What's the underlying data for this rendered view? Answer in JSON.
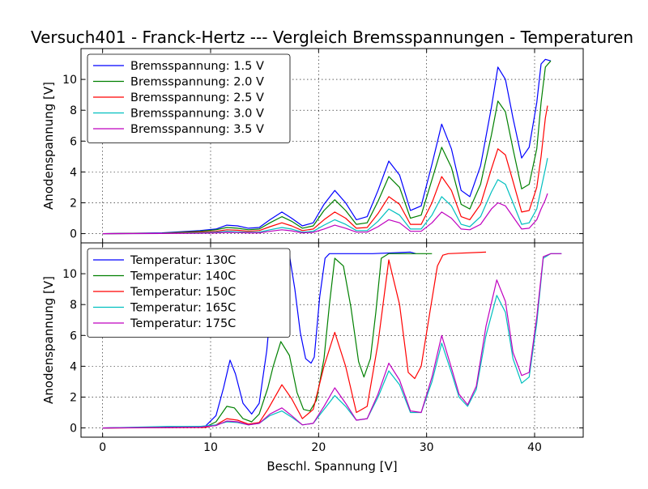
{
  "title": "Versuch401 - Franck-Hertz --- Vergleich Bremsspannungen - Temperaturen",
  "xlabel": "Beschl. Spannung [V]",
  "chart_data": [
    {
      "type": "line",
      "ylabel": "Anodenspannung [V]",
      "xlim": [
        -2,
        44.5
      ],
      "ylim": [
        -0.6,
        12.0
      ],
      "xticks": [
        0,
        10,
        20,
        30,
        40
      ],
      "yticks": [
        0,
        2,
        4,
        6,
        8,
        10
      ],
      "tick_labels_x": [
        "0",
        "10",
        "20",
        "30",
        "40"
      ],
      "tick_labels_y": [
        "0",
        "2",
        "4",
        "6",
        "8",
        "10"
      ],
      "grid": true,
      "legend_position": "top-left",
      "series": [
        {
          "name": "Bremsspannung: 1.5 V",
          "color": "#0000ff",
          "x": [
            0,
            5.5,
            9,
            10.5,
            11.5,
            12.5,
            13.5,
            14.5,
            15.5,
            16.6,
            17.5,
            18.5,
            19.5,
            20.5,
            21.5,
            22.5,
            23.5,
            24.5,
            25.5,
            26.5,
            27.5,
            28.5,
            29.5,
            30.5,
            31.4,
            32.3,
            33.2,
            34,
            35,
            36,
            36.6,
            37.3,
            38,
            38.8,
            39.5,
            40.2,
            40.6,
            41,
            41.5
          ],
          "y": [
            0,
            0.05,
            0.2,
            0.3,
            0.55,
            0.5,
            0.35,
            0.4,
            0.9,
            1.4,
            1.0,
            0.5,
            0.7,
            1.9,
            2.8,
            2.0,
            0.9,
            1.1,
            2.8,
            4.7,
            3.8,
            1.5,
            1.8,
            4.5,
            7.1,
            5.5,
            2.8,
            2.4,
            4.4,
            8.2,
            10.8,
            10.0,
            7.5,
            4.9,
            5.6,
            8.5,
            11.0,
            11.3,
            11.2
          ]
        },
        {
          "name": "Bremsspannung: 2.0 V",
          "color": "#008000",
          "x": [
            0,
            5.5,
            9,
            10.5,
            11.5,
            12.5,
            13.5,
            14.5,
            15.5,
            16.6,
            17.5,
            18.5,
            19.5,
            20.5,
            21.5,
            22.5,
            23.5,
            24.5,
            25.5,
            26.5,
            27.5,
            28.5,
            29.5,
            30.5,
            31.4,
            32.3,
            33.2,
            34,
            35,
            36,
            36.6,
            37.3,
            38,
            38.8,
            39.5,
            40.2,
            40.6,
            41,
            41.5
          ],
          "y": [
            0,
            0.03,
            0.15,
            0.25,
            0.4,
            0.35,
            0.25,
            0.3,
            0.7,
            1.1,
            0.8,
            0.35,
            0.5,
            1.5,
            2.2,
            1.5,
            0.6,
            0.7,
            2.1,
            3.7,
            3.0,
            1.0,
            1.2,
            3.5,
            5.6,
            4.3,
            1.9,
            1.6,
            3.2,
            6.4,
            8.6,
            7.9,
            5.5,
            2.9,
            3.2,
            5.5,
            8.5,
            10.8,
            11.2
          ]
        },
        {
          "name": "Bremsspannung: 2.5 V",
          "color": "#ff0000",
          "x": [
            0,
            5.5,
            9,
            10.5,
            11.5,
            12.5,
            13.5,
            14.5,
            15.5,
            16.6,
            17.5,
            18.5,
            19.5,
            20.5,
            21.5,
            22.5,
            23.5,
            24.5,
            25.5,
            26.5,
            27.5,
            28.5,
            29.5,
            30.5,
            31.4,
            32.3,
            33.2,
            34,
            35,
            36,
            36.6,
            37.3,
            38,
            38.8,
            39.5,
            40.2,
            40.6,
            41,
            41.2
          ],
          "y": [
            0,
            0.02,
            0.1,
            0.15,
            0.25,
            0.22,
            0.15,
            0.2,
            0.45,
            0.7,
            0.5,
            0.2,
            0.3,
            0.9,
            1.4,
            1.0,
            0.35,
            0.4,
            1.3,
            2.4,
            1.9,
            0.6,
            0.6,
            2.0,
            3.7,
            2.8,
            1.1,
            0.9,
            1.9,
            4.2,
            5.5,
            5.1,
            3.4,
            1.4,
            1.5,
            3.0,
            5.0,
            7.5,
            8.3
          ]
        },
        {
          "name": "Bremsspannung: 3.0 V",
          "color": "#00bfbf",
          "x": [
            0,
            5.5,
            9,
            10.5,
            11.5,
            12.5,
            13.5,
            14.5,
            15.5,
            16.6,
            17.5,
            18.5,
            19.5,
            20.5,
            21.5,
            22.5,
            23.5,
            24.5,
            25.5,
            26.5,
            27.5,
            28.5,
            29.5,
            30.5,
            31.4,
            32.3,
            33.2,
            34,
            35,
            36,
            36.6,
            37.3,
            38,
            38.8,
            39.5,
            40.2,
            40.6,
            41,
            41.2
          ],
          "y": [
            0,
            0.01,
            0.05,
            0.1,
            0.15,
            0.12,
            0.08,
            0.1,
            0.25,
            0.4,
            0.3,
            0.1,
            0.15,
            0.55,
            0.9,
            0.6,
            0.2,
            0.2,
            0.8,
            1.6,
            1.2,
            0.3,
            0.3,
            1.2,
            2.4,
            1.8,
            0.6,
            0.45,
            1.1,
            2.7,
            3.5,
            3.2,
            2.0,
            0.6,
            0.7,
            1.6,
            2.9,
            4.2,
            4.9
          ]
        },
        {
          "name": "Bremsspannung: 3.5 V",
          "color": "#bf00bf",
          "x": [
            0,
            5.5,
            9,
            10.5,
            11.5,
            12.5,
            13.5,
            14.5,
            15.5,
            16.6,
            17.5,
            18.5,
            19.5,
            20.5,
            21.5,
            22.5,
            23.5,
            24.5,
            25.5,
            26.5,
            27.5,
            28.5,
            29.5,
            30.5,
            31.4,
            32.3,
            33.2,
            34,
            35,
            36,
            36.6,
            37.3,
            38,
            38.8,
            39.5,
            40.2,
            40.6,
            41,
            41.2
          ],
          "y": [
            0,
            0.01,
            0.02,
            0.05,
            0.08,
            0.07,
            0.05,
            0.05,
            0.15,
            0.25,
            0.18,
            0.05,
            0.08,
            0.3,
            0.55,
            0.35,
            0.1,
            0.1,
            0.45,
            0.9,
            0.7,
            0.15,
            0.15,
            0.7,
            1.4,
            1.0,
            0.3,
            0.25,
            0.6,
            1.6,
            2.0,
            1.8,
            1.1,
            0.3,
            0.35,
            0.9,
            1.6,
            2.2,
            2.6
          ]
        }
      ]
    },
    {
      "type": "line",
      "ylabel": "Anodenspannung [V]",
      "xlim": [
        -2,
        44.5
      ],
      "ylim": [
        -0.6,
        12.0
      ],
      "xticks": [
        0,
        10,
        20,
        30,
        40
      ],
      "yticks": [
        0,
        2,
        4,
        6,
        8,
        10
      ],
      "tick_labels_x": [
        "0",
        "10",
        "20",
        "30",
        "40"
      ],
      "tick_labels_y": [
        "0",
        "2",
        "4",
        "6",
        "8",
        "10"
      ],
      "grid": true,
      "legend_position": "top-left",
      "series": [
        {
          "name": "Temperatur: 130C",
          "color": "#0000ff",
          "x": [
            0,
            9.5,
            10.5,
            11.2,
            11.8,
            12.3,
            13,
            13.8,
            14.5,
            15.2,
            15.8,
            16.3,
            16.8,
            17.3,
            17.8,
            18.3,
            18.8,
            19.3,
            19.6,
            20.1,
            20.6,
            21.0,
            21.5,
            22,
            25,
            28.5,
            29
          ],
          "y": [
            0,
            0.1,
            0.8,
            2.6,
            4.4,
            3.5,
            1.6,
            0.9,
            1.6,
            5.0,
            9.5,
            11.2,
            11.3,
            11.2,
            9.0,
            6.2,
            4.5,
            4.2,
            4.6,
            8.5,
            11.0,
            11.3,
            11.3,
            11.3,
            11.3,
            11.4,
            11.3
          ]
        },
        {
          "name": "Temperatur: 140C",
          "color": "#008000",
          "x": [
            0,
            9.5,
            10.5,
            11.5,
            12.2,
            13,
            13.8,
            14.5,
            15.3,
            15.8,
            16.5,
            17.3,
            18,
            18.6,
            19.2,
            19.8,
            20.5,
            21.0,
            21.5,
            22.3,
            23,
            23.7,
            24.2,
            24.8,
            25.3,
            25.8,
            26.5,
            28,
            30.5
          ],
          "y": [
            0,
            0.05,
            0.4,
            1.4,
            1.3,
            0.6,
            0.4,
            0.9,
            2.6,
            4.0,
            5.6,
            4.7,
            2.3,
            1.2,
            1.1,
            1.8,
            4.5,
            8.0,
            11.0,
            10.5,
            7.8,
            4.3,
            3.3,
            4.5,
            7.5,
            11.0,
            11.3,
            11.3,
            11.3
          ]
        },
        {
          "name": "Temperatur: 150C",
          "color": "#ff0000",
          "x": [
            0,
            9.5,
            10.5,
            11.5,
            12.5,
            13.5,
            14.5,
            15.3,
            16.6,
            17.5,
            18.5,
            19.5,
            20.5,
            21.5,
            22.5,
            23.5,
            24.5,
            25.5,
            26.5,
            27.5,
            28.3,
            28.9,
            29.5,
            30.3,
            31,
            31.5,
            32,
            35.5
          ],
          "y": [
            0,
            0.03,
            0.2,
            0.6,
            0.5,
            0.25,
            0.35,
            1.2,
            2.8,
            1.9,
            0.6,
            1.2,
            4.0,
            6.2,
            4.0,
            1.0,
            1.4,
            5.5,
            10.9,
            8.0,
            3.6,
            3.2,
            4.0,
            7.5,
            10.5,
            11.2,
            11.3,
            11.4
          ]
        },
        {
          "name": "Temperatur: 165C",
          "color": "#00bfbf",
          "x": [
            0,
            6,
            9,
            10.5,
            11.5,
            12.5,
            13.5,
            14.5,
            15.5,
            16.6,
            17.5,
            18.5,
            19.5,
            20.5,
            21.5,
            22.5,
            23.5,
            24.5,
            25.5,
            26.5,
            27.5,
            28.5,
            29.5,
            30.5,
            31.4,
            32.3,
            33,
            33.8,
            34.6,
            35.5,
            36.5,
            37.3,
            38,
            38.8,
            39.5,
            40.2,
            40.8,
            41.5,
            42.5
          ],
          "y": [
            0,
            0.1,
            0.1,
            0.2,
            0.4,
            0.35,
            0.2,
            0.3,
            0.8,
            1.1,
            0.7,
            0.2,
            0.3,
            1.2,
            2.1,
            1.4,
            0.5,
            0.6,
            2.0,
            3.7,
            2.8,
            1.0,
            1.0,
            3.0,
            5.5,
            3.6,
            2.0,
            1.4,
            2.5,
            6.0,
            8.6,
            7.5,
            4.5,
            2.9,
            3.3,
            6.8,
            11.0,
            11.3,
            11.3
          ]
        },
        {
          "name": "Temperatur: 175C",
          "color": "#bf00bf",
          "x": [
            0,
            9,
            10.5,
            11.5,
            12.5,
            13.5,
            14.5,
            15.5,
            16.6,
            17.5,
            18.5,
            19.5,
            20.5,
            21.5,
            22.5,
            23.5,
            24.5,
            25.5,
            26.5,
            27.5,
            28.5,
            29.5,
            30.5,
            31.4,
            32.3,
            33,
            33.8,
            34.6,
            35.5,
            36.5,
            37.3,
            38,
            38.8,
            39.5,
            40.2,
            40.8,
            41.5,
            42.5
          ],
          "y": [
            0,
            0.05,
            0.15,
            0.45,
            0.4,
            0.2,
            0.3,
            0.9,
            1.3,
            0.8,
            0.2,
            0.3,
            1.4,
            2.6,
            1.6,
            0.5,
            0.6,
            2.2,
            4.2,
            3.1,
            1.1,
            1.0,
            3.3,
            6.0,
            3.9,
            2.2,
            1.5,
            2.7,
            6.6,
            9.6,
            8.2,
            4.9,
            3.4,
            3.6,
            7.2,
            11.1,
            11.3,
            11.3
          ]
        }
      ]
    }
  ]
}
